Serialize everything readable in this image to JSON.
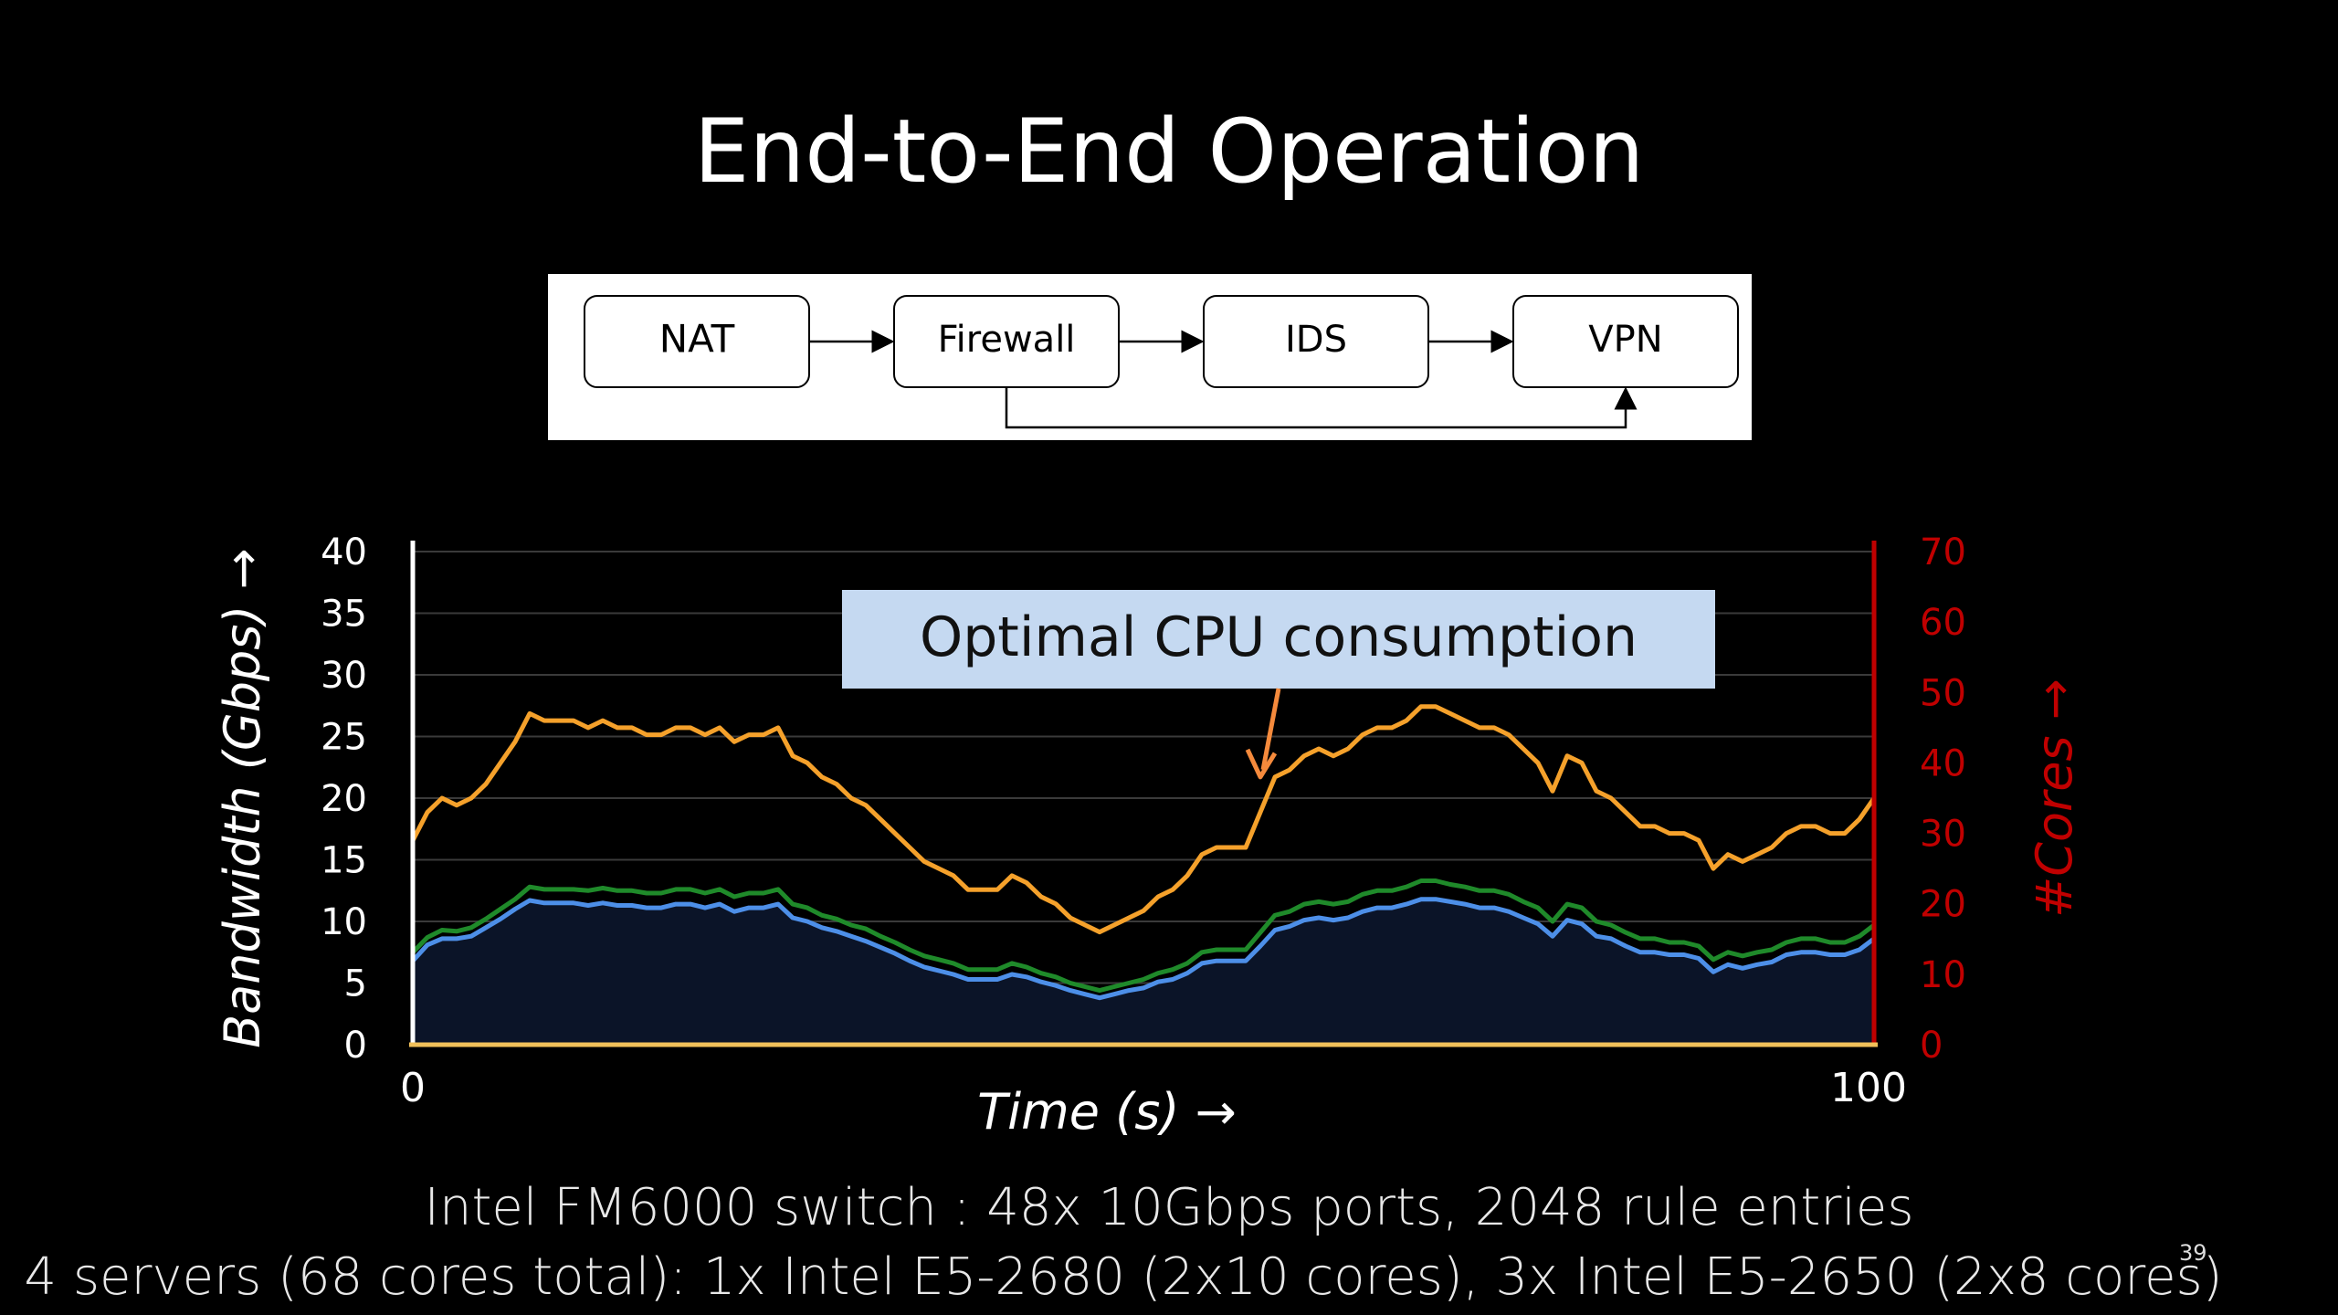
{
  "slide": {
    "title": "End-to-End Operation",
    "footer_line1": "Intel FM6000 switch : 48x 10Gbps ports, 2048 rule entries",
    "footer_line2": "4 servers  (68 cores total): 1x Intel E5-2680 (2x10 cores), 3x Intel E5-2650 (2x8 cores)",
    "slide_number": "39"
  },
  "diagram": {
    "nodes": [
      "NAT",
      "Firewall",
      "IDS",
      "VPN"
    ]
  },
  "colors": {
    "background": "#000000",
    "cores_line": "#f5a12b",
    "green_line": "#1f8a2a",
    "blue_line": "#4d8fe8",
    "area_fill": "#0b1428",
    "right_axis": "#c00000",
    "x_axis": "#f2c15a",
    "callout_fill": "#c5d9f1",
    "callout_arrow": "#f58a3c"
  },
  "chart_data": {
    "type": "line",
    "title": "",
    "xlabel": "Time (s) →",
    "ylabel_left": "Bandwidth (Gbps) →",
    "ylabel_right": "#Cores →",
    "x_tick_labels": [
      "0",
      "100"
    ],
    "xlim": [
      0,
      100
    ],
    "ylim_left": [
      0,
      40
    ],
    "ylim_right": [
      0,
      70
    ],
    "left_ticks": [
      0,
      5,
      10,
      15,
      20,
      25,
      30,
      35,
      40
    ],
    "right_ticks": [
      0,
      10,
      20,
      30,
      40,
      50,
      60,
      70
    ],
    "grid": true,
    "annotation": {
      "text": "Optimal CPU consumption",
      "x": 58,
      "y_right": 38
    },
    "x": [
      0,
      1,
      2,
      3,
      4,
      5,
      6,
      7,
      8,
      9,
      10,
      11,
      12,
      13,
      14,
      15,
      16,
      17,
      18,
      19,
      20,
      21,
      22,
      23,
      24,
      25,
      26,
      27,
      28,
      29,
      30,
      31,
      32,
      33,
      34,
      35,
      36,
      37,
      38,
      39,
      40,
      41,
      42,
      43,
      44,
      45,
      46,
      47,
      48,
      49,
      50,
      51,
      52,
      53,
      54,
      55,
      56,
      57,
      58,
      59,
      60,
      61,
      62,
      63,
      64,
      65,
      66,
      67,
      68,
      69,
      70,
      71,
      72,
      73,
      74,
      75,
      76,
      77,
      78,
      79,
      80,
      81,
      82,
      83,
      84,
      85,
      86,
      87,
      88,
      89,
      90,
      91,
      92,
      93,
      94,
      95,
      96,
      97,
      98,
      99,
      100
    ],
    "series": [
      {
        "name": "",
        "axis": "right",
        "values": [
          29,
          33,
          35,
          34,
          35,
          37,
          40,
          43,
          47,
          46,
          46,
          46,
          45,
          46,
          45,
          45,
          44,
          44,
          45,
          45,
          44,
          45,
          43,
          44,
          44,
          45,
          41,
          40,
          38,
          37,
          35,
          34,
          32,
          30,
          28,
          26,
          25,
          24,
          22,
          22,
          22,
          24,
          23,
          21,
          20,
          18,
          17,
          16,
          17,
          18,
          19,
          21,
          22,
          24,
          27,
          28,
          28,
          28,
          33,
          38,
          39,
          41,
          42,
          41,
          42,
          44,
          45,
          45,
          46,
          48,
          48,
          47,
          46,
          45,
          45,
          44,
          42,
          40,
          36,
          41,
          40,
          36,
          35,
          33,
          31,
          31,
          30,
          30,
          29,
          25,
          27,
          26,
          27,
          28,
          30,
          31,
          31,
          30,
          30,
          32,
          35
        ]
      },
      {
        "name": "",
        "axis": "left",
        "values": [
          7.5,
          8.7,
          9.3,
          9.2,
          9.5,
          10.2,
          11,
          11.8,
          12.8,
          12.6,
          12.6,
          12.6,
          12.5,
          12.7,
          12.5,
          12.5,
          12.3,
          12.3,
          12.6,
          12.6,
          12.3,
          12.6,
          12,
          12.3,
          12.3,
          12.6,
          11.4,
          11.1,
          10.5,
          10.2,
          9.7,
          9.4,
          8.8,
          8.3,
          7.7,
          7.2,
          6.9,
          6.6,
          6.1,
          6.1,
          6.1,
          6.6,
          6.3,
          5.8,
          5.5,
          5,
          4.7,
          4.4,
          4.7,
          5,
          5.3,
          5.8,
          6.1,
          6.6,
          7.5,
          7.7,
          7.7,
          7.7,
          9.1,
          10.5,
          10.8,
          11.4,
          11.6,
          11.4,
          11.6,
          12.2,
          12.5,
          12.5,
          12.8,
          13.3,
          13.3,
          13,
          12.8,
          12.5,
          12.5,
          12.2,
          11.6,
          11.1,
          10,
          11.4,
          11.1,
          10,
          9.7,
          9.1,
          8.6,
          8.6,
          8.3,
          8.3,
          8,
          6.9,
          7.5,
          7.2,
          7.5,
          7.7,
          8.3,
          8.6,
          8.6,
          8.3,
          8.3,
          8.8,
          9.7
        ]
      },
      {
        "name": "",
        "axis": "left",
        "values": [
          6.8,
          8.1,
          8.6,
          8.6,
          8.8,
          9.5,
          10.2,
          11,
          11.7,
          11.5,
          11.5,
          11.5,
          11.3,
          11.5,
          11.3,
          11.3,
          11.1,
          11.1,
          11.4,
          11.4,
          11.1,
          11.4,
          10.8,
          11.1,
          11.1,
          11.4,
          10.3,
          10,
          9.5,
          9.2,
          8.8,
          8.4,
          7.9,
          7.4,
          6.8,
          6.3,
          6,
          5.7,
          5.3,
          5.3,
          5.3,
          5.7,
          5.5,
          5.1,
          4.8,
          4.4,
          4.1,
          3.8,
          4.1,
          4.4,
          4.6,
          5.1,
          5.3,
          5.8,
          6.6,
          6.8,
          6.8,
          6.8,
          8,
          9.3,
          9.6,
          10.1,
          10.3,
          10.1,
          10.3,
          10.8,
          11.1,
          11.1,
          11.4,
          11.8,
          11.8,
          11.6,
          11.4,
          11.1,
          11.1,
          10.8,
          10.3,
          9.8,
          8.8,
          10.1,
          9.8,
          8.8,
          8.6,
          8,
          7.5,
          7.5,
          7.3,
          7.3,
          7,
          5.9,
          6.5,
          6.2,
          6.5,
          6.7,
          7.3,
          7.5,
          7.5,
          7.3,
          7.3,
          7.7,
          8.6
        ]
      }
    ]
  }
}
